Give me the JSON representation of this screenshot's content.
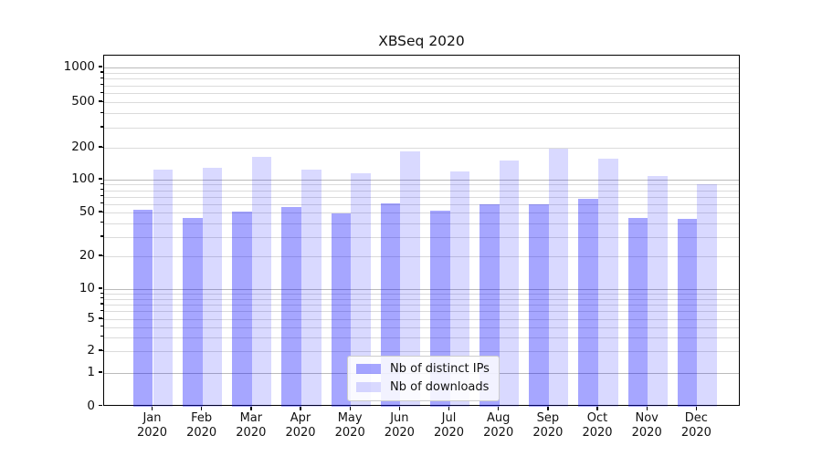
{
  "chart_data": {
    "type": "bar",
    "title": "XBSeq 2020",
    "categories": [
      "Jan\n2020",
      "Feb\n2020",
      "Mar\n2020",
      "Apr\n2020",
      "May\n2020",
      "Jun\n2020",
      "Jul\n2020",
      "Aug\n2020",
      "Sep\n2020",
      "Oct\n2020",
      "Nov\n2020",
      "Dec\n2020"
    ],
    "series": [
      {
        "name": "Nb of distinct IPs",
        "color": "rgba(0,0,255,0.35)",
        "values": [
          53,
          45,
          51,
          56,
          49,
          61,
          52,
          59,
          60,
          67,
          45,
          44
        ]
      },
      {
        "name": "Nb of downloads",
        "color": "rgba(0,0,255,0.15)",
        "values": [
          125,
          130,
          163,
          124,
          115,
          185,
          119,
          151,
          196,
          157,
          108,
          91
        ]
      }
    ],
    "yscale": "symlog",
    "y_ticks": [
      0,
      1,
      2,
      5,
      10,
      20,
      50,
      100,
      200,
      500,
      1000
    ],
    "ylim": [
      0,
      1000
    ],
    "xlabel": "",
    "ylabel": "",
    "grid": "both",
    "legend_position": "lower center",
    "grid_major_color": "#bbbbbb",
    "axis_color": "#000000"
  }
}
